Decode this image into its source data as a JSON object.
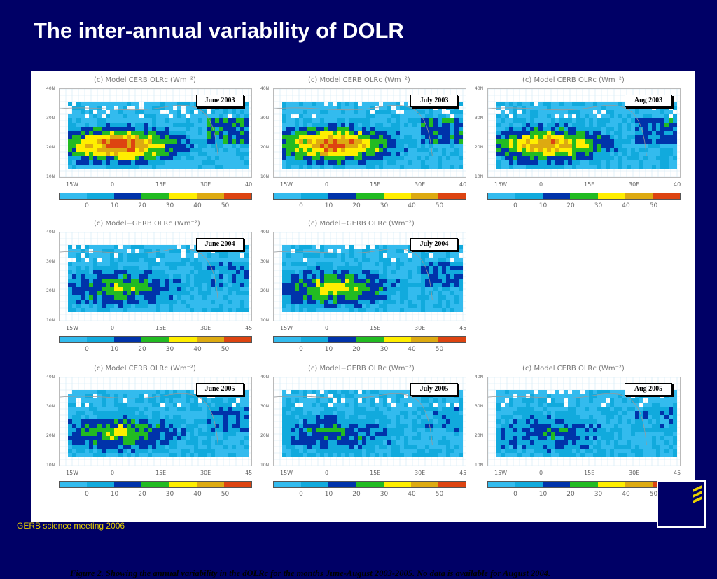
{
  "slide": {
    "title": "The inter-annual variability of DOLR",
    "footer": "GERB science meeting 2006"
  },
  "figure": {
    "caption": "Figure 2. Showing the annual variability in the dOLRc for the months June-August 2003-2005. No data is available for August 2004."
  },
  "colorbar": {
    "colors": [
      "#33bbee",
      "#11aadd",
      "#0033aa",
      "#22bb22",
      "#ffee00",
      "#ddaa11",
      "#dd4411"
    ],
    "tick_labels": [
      "0",
      "10",
      "20",
      "30",
      "40",
      "50"
    ]
  },
  "map_axes": {
    "lat_labels": [
      "40N",
      "30N",
      "20N",
      "10N"
    ],
    "lon_labels_top": [
      "15W",
      "0",
      "15E",
      "30E",
      "40"
    ],
    "lon_labels_2004": [
      "15W",
      "0",
      "15E",
      "30E",
      "45"
    ],
    "lon_labels_2005": [
      "15W",
      "0",
      "15E",
      "30E",
      "45"
    ]
  },
  "panels": [
    {
      "title": "(c) Model  CERB OLRc (Wm⁻²)",
      "month": "June 2003",
      "intensity": 0.9
    },
    {
      "title": "(c) Model  CERB OLRc (Wm⁻²)",
      "month": "July 2003",
      "intensity": 0.85
    },
    {
      "title": "(c) Model  CERB OLRc (Wm⁻²)",
      "month": "Aug 2003",
      "intensity": 0.75
    },
    {
      "title": "(c) Model−GERB OLRc (Wm⁻²)",
      "month": "June 2004",
      "intensity": 0.45
    },
    {
      "title": "(c) Model−GERB OLRc (Wm⁻²)",
      "month": "July 2004",
      "intensity": 0.55
    },
    {
      "title": "(c) Model  CERB OLRc (Wm⁻²)",
      "month": "June 2005",
      "intensity": 0.5
    },
    {
      "title": "(c) Model−GERB OLRc (Wm⁻²)",
      "month": "July 2005",
      "intensity": 0.35
    },
    {
      "title": "(c) Model  CERB OLRc (Wm⁻²)",
      "month": "Aug 2005",
      "intensity": 0.3
    }
  ]
}
